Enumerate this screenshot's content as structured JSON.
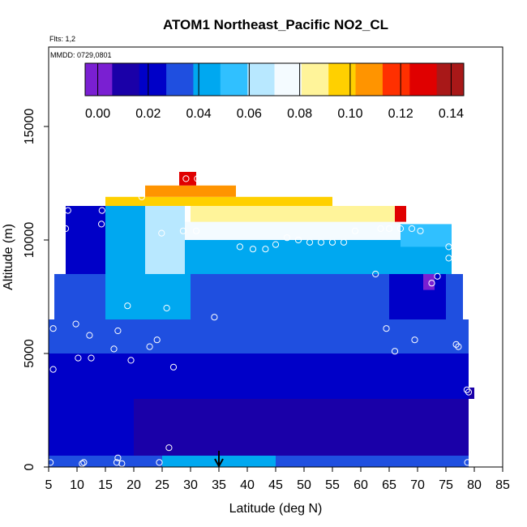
{
  "chart_data": {
    "type": "heatmap",
    "title": "ATOM1 Northeast_Pacific NO2_CL",
    "meta_flights": "Flts: 1,2",
    "meta_dates": "MMDD: 0729,0801",
    "xlabel": "Latitude (deg N)",
    "ylabel": "Altitude (m)",
    "xlim": [
      5,
      85
    ],
    "ylim": [
      0,
      18500
    ],
    "x_ticks": [
      "5",
      "10",
      "15",
      "20",
      "25",
      "30",
      "35",
      "40",
      "45",
      "50",
      "55",
      "60",
      "65",
      "70",
      "75",
      "80",
      "85"
    ],
    "y_ticks": [
      {
        "value": 0,
        "label": "0"
      },
      {
        "value": 5000,
        "label": "5000"
      },
      {
        "value": 10000,
        "label": "10000"
      },
      {
        "value": 15000,
        "label": "15000"
      }
    ],
    "colorbar": {
      "min": -0.005,
      "max": 0.145,
      "ticks": [
        {
          "value": 0.0,
          "label": "0.00"
        },
        {
          "value": 0.02,
          "label": "0.02"
        },
        {
          "value": 0.04,
          "label": "0.04"
        },
        {
          "value": 0.06,
          "label": "0.06"
        },
        {
          "value": 0.08,
          "label": "0.08"
        },
        {
          "value": 0.1,
          "label": "0.10"
        },
        {
          "value": 0.12,
          "label": "0.12"
        },
        {
          "value": 0.14,
          "label": "0.14"
        }
      ],
      "colors": [
        "#7a1fd2",
        "#1a00a8",
        "#0000c8",
        "#1f4fe0",
        "#00a8f0",
        "#30c0ff",
        "#b8e8ff",
        "#f4fbff",
        "#fff49a",
        "#ffd000",
        "#ff9400",
        "#ff3000",
        "#e00000",
        "#a81818"
      ]
    },
    "marker_latitude": 35,
    "cells": [
      {
        "x0": 5,
        "x1": 79,
        "y0": 0,
        "y1": 500,
        "v": 0.03
      },
      {
        "x0": 25,
        "x1": 45,
        "y0": 0,
        "y1": 500,
        "v": 0.048
      },
      {
        "x0": 5,
        "x1": 79,
        "y0": 500,
        "y1": 3000,
        "v": 0.015
      },
      {
        "x0": 5,
        "x1": 20,
        "y0": 500,
        "y1": 3000,
        "v": 0.024
      },
      {
        "x0": 78,
        "x1": 80,
        "y0": 3000,
        "y1": 3500,
        "v": 0.015
      },
      {
        "x0": 5,
        "x1": 79,
        "y0": 3000,
        "y1": 5000,
        "v": 0.02
      },
      {
        "x0": 5,
        "x1": 79,
        "y0": 5000,
        "y1": 6500,
        "v": 0.03
      },
      {
        "x0": 6,
        "x1": 78,
        "y0": 6500,
        "y1": 8500,
        "v": 0.036
      },
      {
        "x0": 15,
        "x1": 30,
        "y0": 6500,
        "y1": 8500,
        "v": 0.046
      },
      {
        "x0": 65,
        "x1": 75,
        "y0": 6500,
        "y1": 8500,
        "v": 0.018
      },
      {
        "x0": 71,
        "x1": 73,
        "y0": 7800,
        "y1": 8500,
        "v": 0.0
      },
      {
        "x0": 8,
        "x1": 76,
        "y0": 8500,
        "y1": 10000,
        "v": 0.045
      },
      {
        "x0": 8,
        "x1": 15,
        "y0": 8500,
        "y1": 11500,
        "v": 0.018
      },
      {
        "x0": 15,
        "x1": 22,
        "y0": 8500,
        "y1": 11500,
        "v": 0.038
      },
      {
        "x0": 22,
        "x1": 29,
        "y0": 8500,
        "y1": 11500,
        "v": 0.06
      },
      {
        "x0": 29,
        "x1": 67,
        "y0": 10000,
        "y1": 10800,
        "v": 0.078
      },
      {
        "x0": 67,
        "x1": 76,
        "y0": 9700,
        "y1": 10700,
        "v": 0.05
      },
      {
        "x0": 30,
        "x1": 66,
        "y0": 10800,
        "y1": 11500,
        "v": 0.088
      },
      {
        "x0": 15,
        "x1": 55,
        "y0": 11500,
        "y1": 11900,
        "v": 0.098
      },
      {
        "x0": 22,
        "x1": 38,
        "y0": 11900,
        "y1": 12400,
        "v": 0.11
      },
      {
        "x0": 28,
        "x1": 31,
        "y0": 12400,
        "y1": 13000,
        "v": 0.128
      },
      {
        "x0": 66,
        "x1": 68,
        "y0": 10800,
        "y1": 11500,
        "v": 0.13
      }
    ],
    "points": [
      [
        5.3,
        200
      ],
      [
        10.9,
        150
      ],
      [
        11.2,
        200
      ],
      [
        17.2,
        400
      ],
      [
        17.9,
        150
      ],
      [
        17.0,
        200
      ],
      [
        24.5,
        200
      ],
      [
        26.2,
        850
      ],
      [
        27.0,
        4400
      ],
      [
        24.1,
        5600
      ],
      [
        22.8,
        5300
      ],
      [
        19.5,
        4700
      ],
      [
        12.5,
        4800
      ],
      [
        10.2,
        4800
      ],
      [
        5.8,
        4300
      ],
      [
        5.8,
        6100
      ],
      [
        9.8,
        6300
      ],
      [
        12.2,
        5800
      ],
      [
        16.5,
        5200
      ],
      [
        17.2,
        6000
      ],
      [
        18.9,
        7100
      ],
      [
        25.8,
        7000
      ],
      [
        34.2,
        6600
      ],
      [
        64.5,
        6100
      ],
      [
        66.0,
        5100
      ],
      [
        69.5,
        5600
      ],
      [
        76.8,
        5400
      ],
      [
        77.2,
        5300
      ],
      [
        79.0,
        3300
      ],
      [
        78.7,
        3400
      ],
      [
        78.8,
        200
      ],
      [
        8.0,
        10500
      ],
      [
        8.4,
        11300
      ],
      [
        14.4,
        11300
      ],
      [
        14.3,
        10700
      ],
      [
        21.4,
        11900
      ],
      [
        24.9,
        10300
      ],
      [
        28.7,
        10400
      ],
      [
        31.0,
        10400
      ],
      [
        29.2,
        12700
      ],
      [
        31.2,
        12700
      ],
      [
        38.7,
        9700
      ],
      [
        41.0,
        9600
      ],
      [
        43.2,
        9600
      ],
      [
        45.0,
        9800
      ],
      [
        47.0,
        10100
      ],
      [
        49.0,
        10000
      ],
      [
        51.0,
        9900
      ],
      [
        53.0,
        9900
      ],
      [
        55.0,
        9900
      ],
      [
        57.0,
        9900
      ],
      [
        59.0,
        10400
      ],
      [
        62.6,
        8500
      ],
      [
        63.5,
        10500
      ],
      [
        65.0,
        10500
      ],
      [
        67.0,
        10500
      ],
      [
        69.0,
        10500
      ],
      [
        70.5,
        10400
      ],
      [
        72.5,
        8100
      ],
      [
        73.5,
        8400
      ],
      [
        75.5,
        9700
      ],
      [
        75.5,
        9200
      ]
    ]
  }
}
